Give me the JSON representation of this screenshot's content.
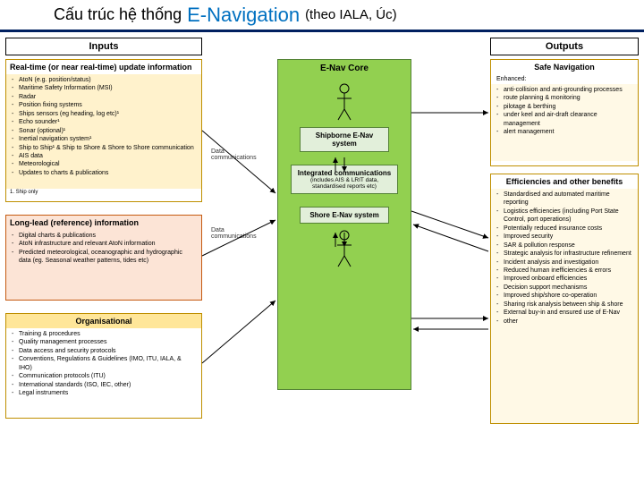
{
  "title": {
    "pre": "Cấu trúc hệ thống",
    "main": "E-Navigation",
    "post": "(theo IALA, Úc)"
  },
  "colors": {
    "title_underline": "#002060",
    "title_hl": "#0070c0",
    "inputs_bg": "#fff2cc",
    "inputs_border": "#bf8f00",
    "longlead_bg": "#fce4d6",
    "org_bg": "#ffe699",
    "core_bg": "#92d050",
    "core_inner": "#e2efda",
    "outputs_bg": "#fff9e6",
    "outputs_border": "#bf8f00"
  },
  "headers": {
    "inputs": "Inputs",
    "outputs": "Outputs"
  },
  "comm_label": "Data communications",
  "inputs_rt": {
    "title": "Real-time (or near real-time) update information",
    "items": [
      "AtoN (e.g. position/status)",
      "Maritime Safety Information (MSI)",
      "Radar",
      "Position fixing systems",
      "Ships sensors (eg heading, log etc)¹",
      "Echo sounder¹",
      "Sonar (optional)¹",
      "Inertial navigation system¹",
      "Ship to Ship¹ & Ship to Shore & Shore to Shore communication",
      "AIS data",
      "Meteorological",
      "Updates to charts & publications"
    ],
    "footnote": "1. Ship only"
  },
  "inputs_ll": {
    "title": "Long-lead (reference) information",
    "items": [
      "Digital charts & publications",
      "AtoN infrastructure and relevant AtoN information",
      "Predicted meteorological, oceanographic and hydrographic data (eg. Seasonal weather patterns, tides etc)"
    ]
  },
  "inputs_org": {
    "title": "Organisational",
    "items": [
      "Training & procedures",
      "Quality management processes",
      "Data access and security protocols",
      "Conventions, Regulations & Guidelines (IMO, ITU, IALA, & IHO)",
      "Communication protocols (ITU)",
      "International standards (ISO, IEC, other)",
      "Legal instruments"
    ]
  },
  "core": {
    "title": "E-Nav Core",
    "ship": "Shipborne E-Nav system",
    "comm": "Integrated communications",
    "comm_sub": "(includes AIS & LRIT data, standardised reports etc)",
    "shore": "Shore E-Nav system"
  },
  "out_safe": {
    "title": "Safe Navigation",
    "sub": "Enhanced:",
    "items": [
      "anti-collision and anti-grounding processes",
      "route planning & monitoring",
      "pilotage & berthing",
      "under keel and air-draft clearance management",
      "alert management"
    ]
  },
  "out_eff": {
    "title": "Efficiencies and other benefits",
    "items": [
      "Standardised and automated maritime reporting",
      "Logistics efficiencies (including Port State Control, port operations)",
      "Potentially reduced insurance costs",
      "Improved security",
      "SAR & pollution response",
      "Strategic analysis for infrastructure refinement",
      "Incident analysis and investigation",
      "Reduced human inefficiencies & errors",
      "Improved onboard efficiencies",
      "Decision support mechanisms",
      "Improved ship/shore co-operation",
      "Sharing risk analysis between ship & shore",
      "External buy-in and ensured use of E-Nav",
      "other"
    ]
  }
}
